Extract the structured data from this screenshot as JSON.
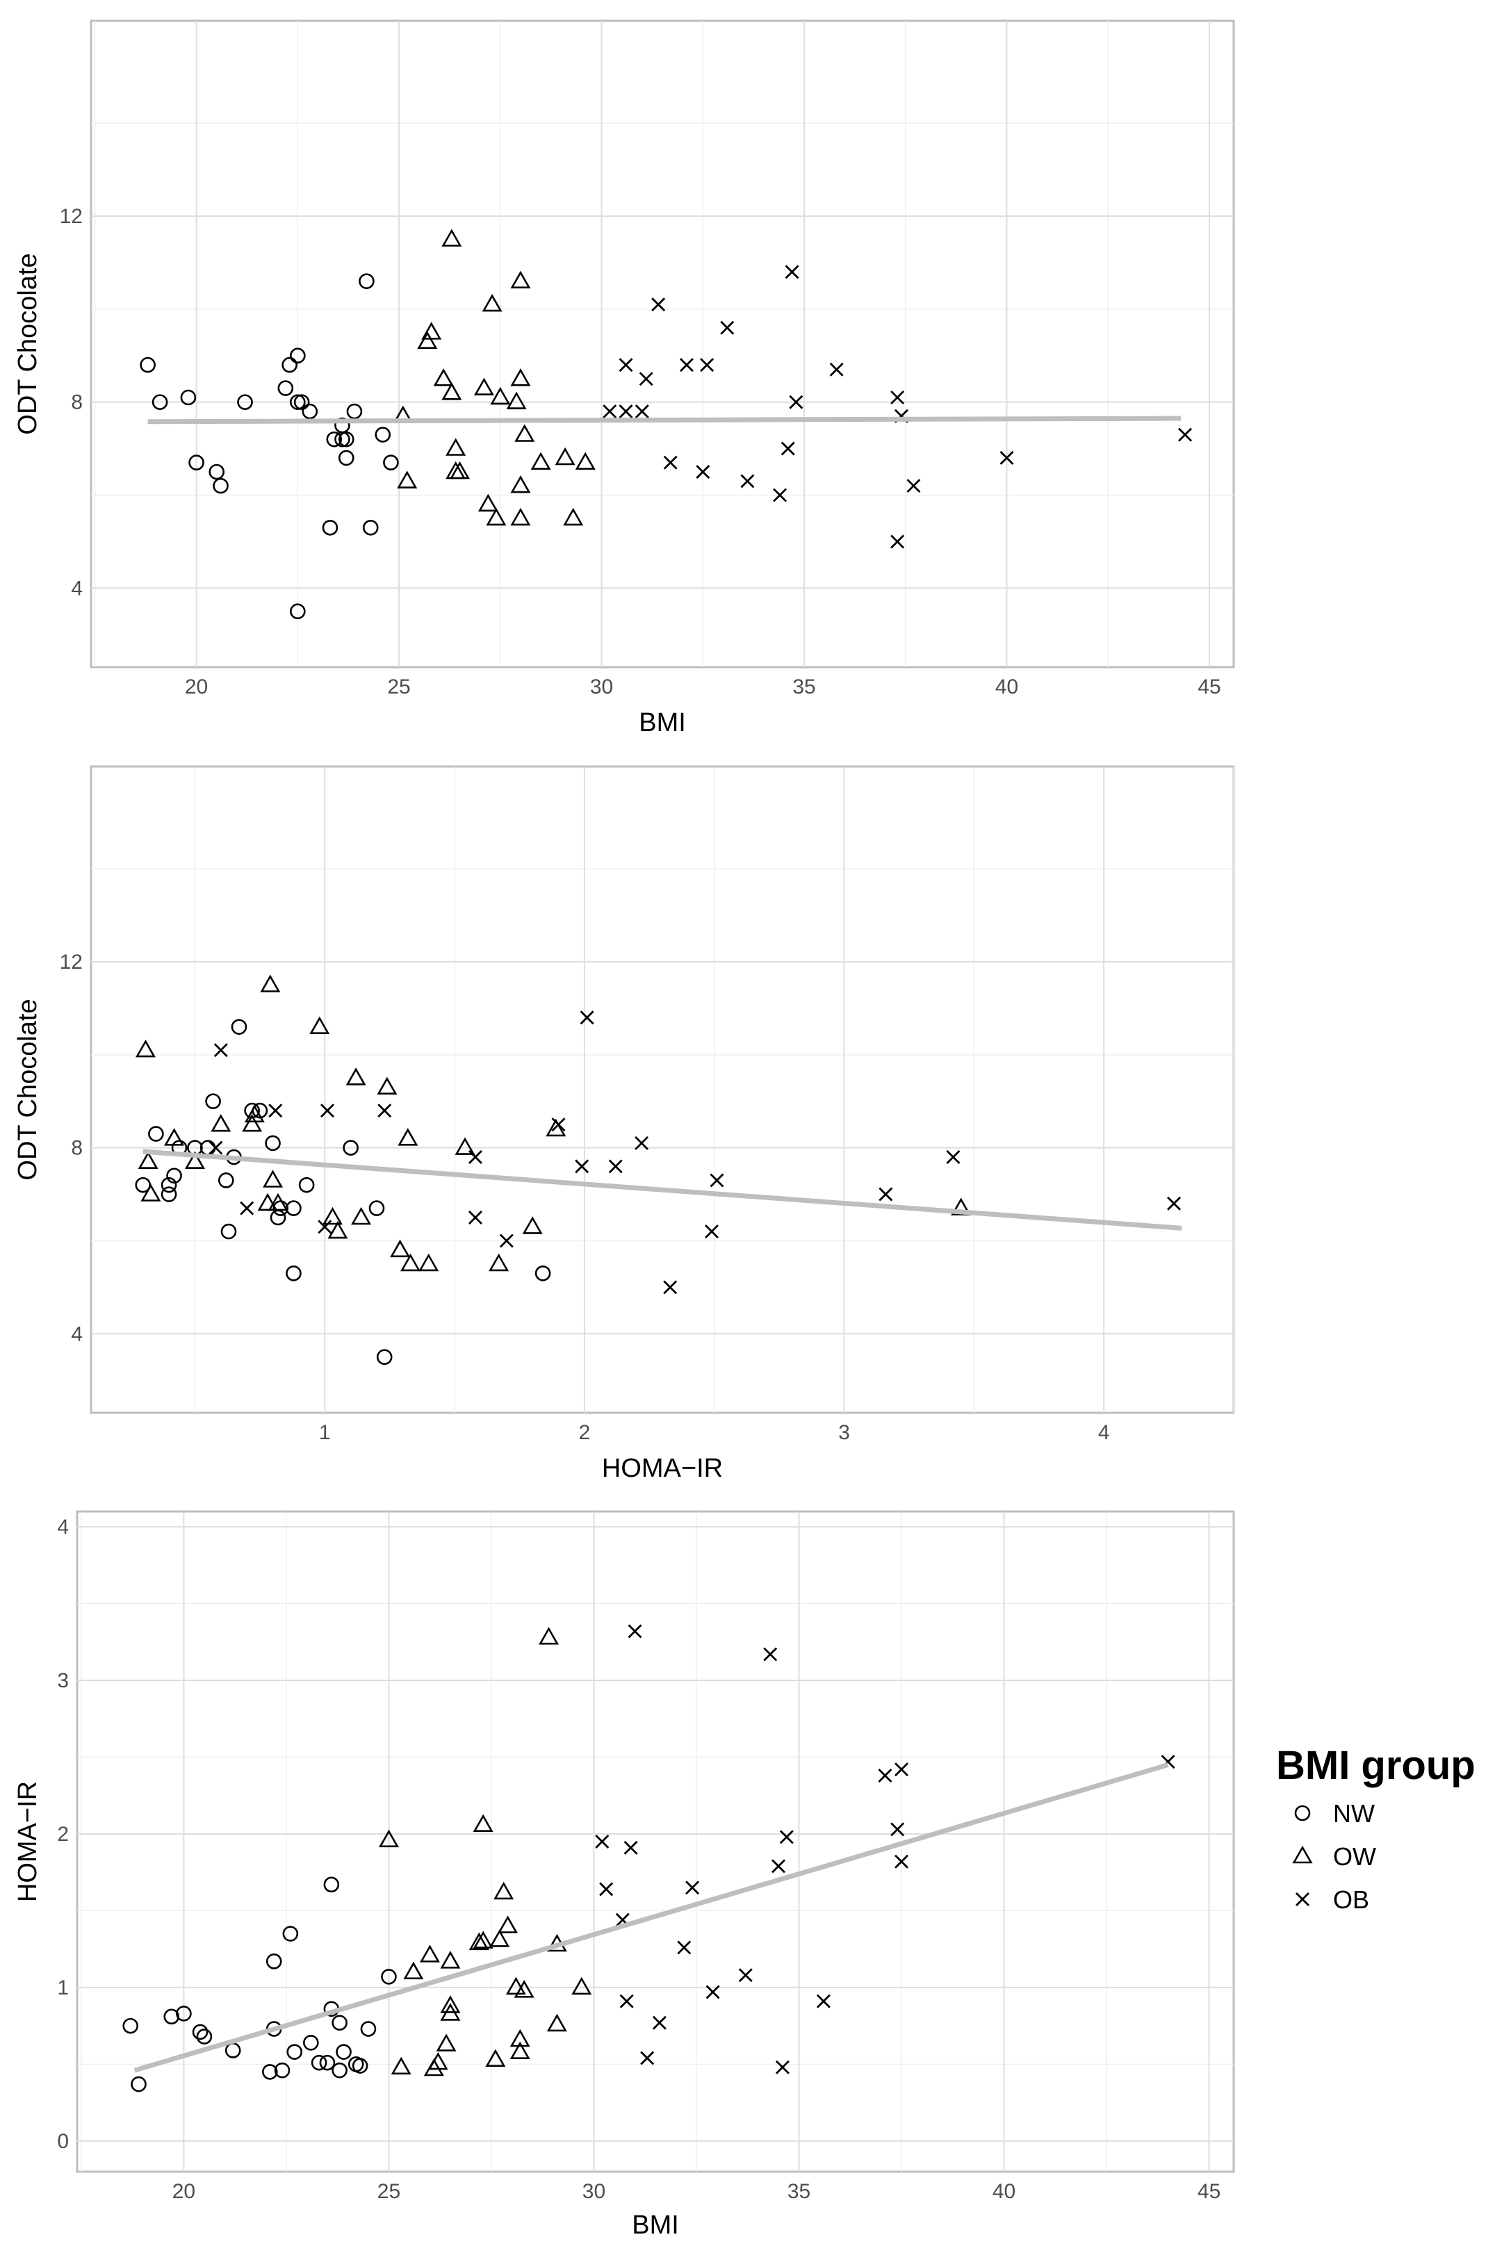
{
  "colors": {
    "points": "#000000",
    "fit_line": "#bebebe",
    "grid": "#dedede",
    "panel_border": "#bdbdbd"
  },
  "legend": {
    "title": "BMI group",
    "entries": [
      {
        "label": "NW",
        "shape": "circle"
      },
      {
        "label": "OW",
        "shape": "triangle"
      },
      {
        "label": "OB",
        "shape": "cross"
      }
    ]
  },
  "chart_data": [
    {
      "type": "scatter",
      "title": "",
      "xlabel": "BMI",
      "ylabel": "ODT Chocolate",
      "xlim": [
        17.4,
        45.6
      ],
      "ylim": [
        2.3,
        16.2
      ],
      "xticks": [
        20,
        25,
        30,
        35,
        40,
        45
      ],
      "yticks": [
        4,
        8,
        12
      ],
      "grid": true,
      "series": [
        {
          "name": "NW",
          "shape": "circle",
          "points": [
            [
              18.8,
              8.8
            ],
            [
              19.1,
              8.0
            ],
            [
              19.8,
              8.1
            ],
            [
              20.0,
              6.7
            ],
            [
              20.5,
              6.5
            ],
            [
              20.6,
              6.2
            ],
            [
              21.2,
              8.0
            ],
            [
              22.2,
              8.3
            ],
            [
              22.3,
              8.8
            ],
            [
              22.5,
              9.0
            ],
            [
              22.5,
              8.0
            ],
            [
              22.6,
              8.0
            ],
            [
              22.8,
              7.8
            ],
            [
              23.3,
              5.3
            ],
            [
              23.4,
              7.2
            ],
            [
              23.6,
              7.2
            ],
            [
              23.6,
              7.5
            ],
            [
              23.7,
              6.8
            ],
            [
              23.9,
              7.8
            ],
            [
              24.2,
              10.6
            ],
            [
              24.3,
              5.3
            ],
            [
              24.6,
              7.3
            ],
            [
              24.8,
              6.7
            ],
            [
              22.5,
              3.5
            ],
            [
              23.7,
              7.2
            ]
          ]
        },
        {
          "name": "OW",
          "shape": "triangle",
          "points": [
            [
              25.1,
              7.7
            ],
            [
              25.2,
              6.3
            ],
            [
              25.7,
              9.3
            ],
            [
              25.8,
              9.5
            ],
            [
              26.1,
              8.5
            ],
            [
              26.3,
              8.2
            ],
            [
              26.4,
              7.0
            ],
            [
              26.4,
              6.5
            ],
            [
              26.5,
              6.5
            ],
            [
              26.3,
              11.5
            ],
            [
              27.1,
              8.3
            ],
            [
              27.2,
              5.8
            ],
            [
              27.3,
              10.1
            ],
            [
              27.4,
              5.5
            ],
            [
              27.5,
              8.1
            ],
            [
              27.9,
              8.0
            ],
            [
              28.0,
              8.5
            ],
            [
              28.0,
              10.6
            ],
            [
              28.0,
              6.2
            ],
            [
              28.1,
              7.3
            ],
            [
              28.0,
              5.5
            ],
            [
              28.5,
              6.7
            ],
            [
              29.1,
              6.8
            ],
            [
              29.3,
              5.5
            ],
            [
              29.6,
              6.7
            ]
          ]
        },
        {
          "name": "OB",
          "shape": "cross",
          "points": [
            [
              30.2,
              7.8
            ],
            [
              30.6,
              7.8
            ],
            [
              30.6,
              8.8
            ],
            [
              31.0,
              7.8
            ],
            [
              31.1,
              8.5
            ],
            [
              31.4,
              10.1
            ],
            [
              31.7,
              6.7
            ],
            [
              32.1,
              8.8
            ],
            [
              32.5,
              6.5
            ],
            [
              32.6,
              8.8
            ],
            [
              33.1,
              9.6
            ],
            [
              33.6,
              6.3
            ],
            [
              34.4,
              6.0
            ],
            [
              34.6,
              7.0
            ],
            [
              34.7,
              10.8
            ],
            [
              34.8,
              8.0
            ],
            [
              35.8,
              8.7
            ],
            [
              37.3,
              8.1
            ],
            [
              37.4,
              7.7
            ],
            [
              37.3,
              5.0
            ],
            [
              37.7,
              6.2
            ],
            [
              40.0,
              6.8
            ],
            [
              44.4,
              7.3
            ]
          ]
        }
      ],
      "fit_line": {
        "x": [
          18.8,
          44.3
        ],
        "y": [
          7.58,
          7.65
        ]
      }
    },
    {
      "type": "scatter",
      "title": "",
      "xlabel": "HOMA−IR",
      "ylabel": "ODT Chocolate",
      "xlim": [
        0.1,
        4.5
      ],
      "ylim": [
        2.3,
        16.2
      ],
      "xticks": [
        1,
        2,
        3,
        4
      ],
      "yticks": [
        4,
        8,
        12
      ],
      "grid": true,
      "series": [
        {
          "name": "NW",
          "shape": "circle",
          "points": [
            [
              0.3,
              7.2
            ],
            [
              0.35,
              8.3
            ],
            [
              0.4,
              7.2
            ],
            [
              0.42,
              7.4
            ],
            [
              0.44,
              8.0
            ],
            [
              0.5,
              8.0
            ],
            [
              0.55,
              8.0
            ],
            [
              0.57,
              9.0
            ],
            [
              0.67,
              10.6
            ],
            [
              0.75,
              8.8
            ],
            [
              0.8,
              8.1
            ],
            [
              0.83,
              6.7
            ],
            [
              0.88,
              6.7
            ],
            [
              0.93,
              7.2
            ],
            [
              0.72,
              8.8
            ],
            [
              0.65,
              7.8
            ],
            [
              0.63,
              6.2
            ],
            [
              0.88,
              5.3
            ],
            [
              1.1,
              8.0
            ],
            [
              1.2,
              6.7
            ],
            [
              1.23,
              3.5
            ],
            [
              1.84,
              5.3
            ],
            [
              0.62,
              7.3
            ],
            [
              0.4,
              7.0
            ],
            [
              0.82,
              6.5
            ]
          ]
        },
        {
          "name": "OW",
          "shape": "triangle",
          "points": [
            [
              0.31,
              10.1
            ],
            [
              0.32,
              7.7
            ],
            [
              0.33,
              7.0
            ],
            [
              0.42,
              8.2
            ],
            [
              0.5,
              7.7
            ],
            [
              0.6,
              8.5
            ],
            [
              0.72,
              8.5
            ],
            [
              0.73,
              8.7
            ],
            [
              0.79,
              11.5
            ],
            [
              0.78,
              6.8
            ],
            [
              0.8,
              7.3
            ],
            [
              0.82,
              6.8
            ],
            [
              0.98,
              10.6
            ],
            [
              1.03,
              6.5
            ],
            [
              1.05,
              6.2
            ],
            [
              1.12,
              9.5
            ],
            [
              1.14,
              6.5
            ],
            [
              1.24,
              9.3
            ],
            [
              1.29,
              5.8
            ],
            [
              1.32,
              8.2
            ],
            [
              1.33,
              5.5
            ],
            [
              1.4,
              5.5
            ],
            [
              1.54,
              8.0
            ],
            [
              1.67,
              5.5
            ],
            [
              1.8,
              6.3
            ],
            [
              1.89,
              8.4
            ],
            [
              3.45,
              6.7
            ]
          ]
        },
        {
          "name": "OB",
          "shape": "cross",
          "points": [
            [
              0.6,
              10.1
            ],
            [
              0.58,
              8.0
            ],
            [
              0.7,
              6.7
            ],
            [
              0.81,
              8.8
            ],
            [
              1.0,
              6.3
            ],
            [
              1.01,
              8.8
            ],
            [
              1.23,
              8.8
            ],
            [
              1.58,
              7.8
            ],
            [
              1.58,
              6.5
            ],
            [
              1.7,
              6.0
            ],
            [
              1.9,
              8.5
            ],
            [
              1.99,
              7.6
            ],
            [
              2.01,
              10.8
            ],
            [
              2.12,
              7.6
            ],
            [
              2.22,
              8.1
            ],
            [
              2.33,
              5.0
            ],
            [
              2.49,
              6.2
            ],
            [
              2.51,
              7.3
            ],
            [
              3.16,
              7.0
            ],
            [
              3.42,
              7.8
            ],
            [
              4.27,
              6.8
            ]
          ]
        }
      ],
      "fit_line": {
        "x": [
          0.3,
          4.3
        ],
        "y": [
          7.92,
          6.27
        ]
      }
    },
    {
      "type": "scatter",
      "title": "",
      "xlabel": "BMI",
      "ylabel": "HOMA−IR",
      "xlim": [
        17.4,
        45.6
      ],
      "ylim": [
        -0.2,
        4.1
      ],
      "xticks": [
        20,
        25,
        30,
        35,
        40,
        45
      ],
      "yticks": [
        0,
        1,
        2,
        3,
        4
      ],
      "grid": true,
      "series": [
        {
          "name": "NW",
          "shape": "circle",
          "points": [
            [
              18.7,
              0.75
            ],
            [
              18.9,
              0.37
            ],
            [
              19.7,
              0.81
            ],
            [
              20.0,
              0.83
            ],
            [
              20.4,
              0.71
            ],
            [
              20.5,
              0.68
            ],
            [
              21.2,
              0.59
            ],
            [
              22.1,
              0.45
            ],
            [
              22.2,
              1.17
            ],
            [
              22.2,
              0.73
            ],
            [
              22.4,
              0.46
            ],
            [
              22.6,
              1.35
            ],
            [
              22.7,
              0.58
            ],
            [
              23.1,
              0.64
            ],
            [
              23.3,
              0.51
            ],
            [
              23.5,
              0.51
            ],
            [
              23.6,
              1.67
            ],
            [
              23.6,
              0.86
            ],
            [
              23.8,
              0.46
            ],
            [
              23.8,
              0.77
            ],
            [
              23.9,
              0.58
            ],
            [
              24.2,
              0.5
            ],
            [
              24.3,
              0.49
            ],
            [
              24.5,
              0.73
            ],
            [
              25.0,
              1.07
            ]
          ]
        },
        {
          "name": "OW",
          "shape": "triangle",
          "points": [
            [
              25.0,
              1.96
            ],
            [
              25.3,
              0.48
            ],
            [
              25.6,
              1.1
            ],
            [
              26.0,
              1.21
            ],
            [
              26.1,
              0.47
            ],
            [
              26.2,
              0.51
            ],
            [
              26.4,
              0.63
            ],
            [
              26.5,
              0.88
            ],
            [
              26.5,
              0.83
            ],
            [
              26.5,
              1.17
            ],
            [
              27.2,
              1.29
            ],
            [
              27.3,
              2.06
            ],
            [
              27.3,
              1.3
            ],
            [
              27.6,
              0.53
            ],
            [
              27.7,
              1.31
            ],
            [
              27.8,
              1.62
            ],
            [
              27.9,
              1.4
            ],
            [
              28.1,
              1.0
            ],
            [
              28.2,
              0.66
            ],
            [
              28.2,
              0.58
            ],
            [
              28.3,
              0.98
            ],
            [
              28.9,
              3.28
            ],
            [
              29.1,
              1.28
            ],
            [
              29.1,
              0.76
            ],
            [
              29.7,
              1.0
            ]
          ]
        },
        {
          "name": "OB",
          "shape": "cross",
          "points": [
            [
              30.2,
              1.95
            ],
            [
              30.3,
              1.64
            ],
            [
              30.7,
              1.44
            ],
            [
              30.8,
              0.91
            ],
            [
              30.9,
              1.91
            ],
            [
              31.0,
              3.32
            ],
            [
              31.3,
              0.54
            ],
            [
              31.6,
              0.77
            ],
            [
              32.2,
              1.26
            ],
            [
              32.4,
              1.65
            ],
            [
              32.9,
              0.97
            ],
            [
              33.7,
              1.08
            ],
            [
              34.3,
              3.17
            ],
            [
              34.5,
              1.79
            ],
            [
              34.6,
              0.48
            ],
            [
              34.7,
              1.98
            ],
            [
              35.6,
              0.91
            ],
            [
              37.1,
              2.38
            ],
            [
              37.4,
              2.03
            ],
            [
              37.5,
              2.42
            ],
            [
              37.5,
              1.82
            ],
            [
              44.0,
              2.47
            ]
          ]
        }
      ],
      "fit_line": {
        "x": [
          18.8,
          44.0
        ],
        "y": [
          0.46,
          2.45
        ]
      }
    }
  ]
}
